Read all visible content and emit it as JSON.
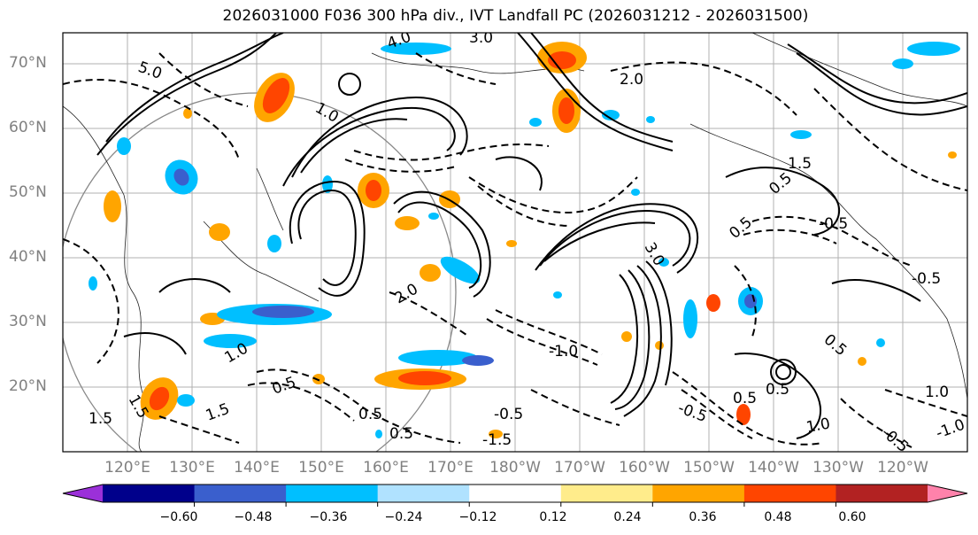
{
  "title": "2026031000 F036 300 hPa div., IVT Landfall PC (2026031212 - 2026031500)",
  "lat_labels": [
    "70°N",
    "60°N",
    "50°N",
    "40°N",
    "30°N",
    "20°N"
  ],
  "lon_labels": [
    "120°E",
    "130°E",
    "140°E",
    "150°E",
    "160°E",
    "170°E",
    "180°W",
    "170°W",
    "160°W",
    "150°W",
    "140°W",
    "130°W",
    "120°W"
  ],
  "colorbar": {
    "colors": [
      "#9b30d9",
      "#00008b",
      "#3a5fcd",
      "#00bfff",
      "#b0e2ff",
      "#ffffff",
      "#ffec8b",
      "#ffa500",
      "#ff4500",
      "#b22222",
      "#ff82ab"
    ],
    "tick_labels": [
      "−0.60",
      "−0.48",
      "−0.36",
      "−0.24",
      "−0.12",
      "0.12",
      "0.24",
      "0.36",
      "0.48",
      "0.60"
    ]
  },
  "contour_labels": [
    "3.0",
    "4.0",
    "5.0",
    "2.0",
    "1.0",
    "1.5",
    "0.5",
    "-0.5",
    "-1.0",
    "-1.5",
    "0.5",
    "1.5",
    "3.0",
    "2.0",
    "1.0",
    "0.5",
    "-0.5",
    "-0.5",
    "0.5",
    "1.0",
    "1.5",
    "0.5",
    "-0.5",
    "0.5",
    "1.0",
    "0.5",
    "1.5",
    "0.5",
    "-0.5",
    "-1.0"
  ]
}
